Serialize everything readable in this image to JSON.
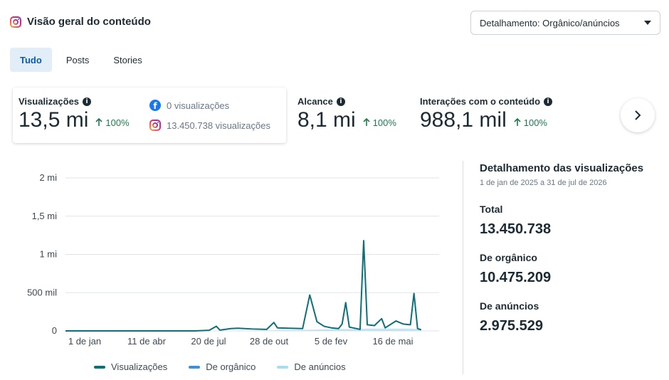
{
  "header": {
    "title": "Visão geral do conteúdo",
    "icon": "instagram-icon"
  },
  "dropdown": {
    "label": "Detalhamento: Orgânico/anúncios"
  },
  "tabs": [
    {
      "label": "Tudo",
      "active": true
    },
    {
      "label": "Posts",
      "active": false
    },
    {
      "label": "Stories",
      "active": false
    }
  ],
  "metrics": {
    "views": {
      "label": "Visualizações",
      "value": "13,5 mi",
      "trend": "100%",
      "facebook": "0 visualizações",
      "instagram": "13.450.738 visualizações"
    },
    "reach": {
      "label": "Alcance",
      "value": "8,1 mi",
      "trend": "100%"
    },
    "interactions": {
      "label": "Interações com o conteúdo",
      "value": "988,1 mil",
      "trend": "100%"
    }
  },
  "breakdown": {
    "title": "Detalhamento das visualizações",
    "date_range": "1 de jan de 2025 a 31 de jul de 2026",
    "total_label": "Total",
    "total_value": "13.450.738",
    "organic_label": "De orgânico",
    "organic_value": "10.475.209",
    "ads_label": "De anúncios",
    "ads_value": "2.975.529"
  },
  "legend": [
    "Visualizações",
    "De orgânico",
    "De anúncios"
  ],
  "colors": {
    "views": "#0e6f77",
    "organic": "#3f8fd9",
    "ads": "#a7dcf2",
    "trend": "#1f7a4d",
    "accent": "#0a5cad"
  },
  "chart_data": {
    "type": "line",
    "y_ticks": [
      "2 mi",
      "1,5 mi",
      "1 mi",
      "500 mil",
      "0"
    ],
    "x_ticks": [
      "1 de jan",
      "11 de abr",
      "20 de jul",
      "28 de out",
      "5 de fev",
      "16 de mai"
    ],
    "ylim": [
      0,
      2000000
    ],
    "series": [
      {
        "name": "Visualizações",
        "points": [
          [
            0,
            0
          ],
          [
            180,
            0
          ],
          [
            200,
            8000
          ],
          [
            210,
            60000
          ],
          [
            215,
            10000
          ],
          [
            230,
            30000
          ],
          [
            240,
            35000
          ],
          [
            260,
            25000
          ],
          [
            280,
            20000
          ],
          [
            290,
            110000
          ],
          [
            295,
            40000
          ],
          [
            310,
            35000
          ],
          [
            330,
            30000
          ],
          [
            340,
            470000
          ],
          [
            350,
            120000
          ],
          [
            360,
            60000
          ],
          [
            370,
            40000
          ],
          [
            380,
            30000
          ],
          [
            385,
            90000
          ],
          [
            390,
            370000
          ],
          [
            395,
            50000
          ],
          [
            400,
            40000
          ],
          [
            410,
            20000
          ],
          [
            415,
            1180000
          ],
          [
            420,
            80000
          ],
          [
            430,
            70000
          ],
          [
            440,
            160000
          ],
          [
            445,
            40000
          ],
          [
            460,
            130000
          ],
          [
            470,
            90000
          ],
          [
            480,
            80000
          ],
          [
            485,
            490000
          ],
          [
            490,
            30000
          ],
          [
            495,
            15000
          ]
        ]
      },
      {
        "name": "De orgânico",
        "points": []
      },
      {
        "name": "De anúncios",
        "points": [
          [
            0,
            0
          ],
          [
            200,
            0
          ],
          [
            300,
            8000
          ],
          [
            340,
            15000
          ],
          [
            360,
            20000
          ],
          [
            380,
            25000
          ],
          [
            400,
            25000
          ],
          [
            420,
            30000
          ],
          [
            440,
            30000
          ],
          [
            460,
            30000
          ],
          [
            480,
            30000
          ],
          [
            495,
            25000
          ]
        ]
      }
    ]
  }
}
